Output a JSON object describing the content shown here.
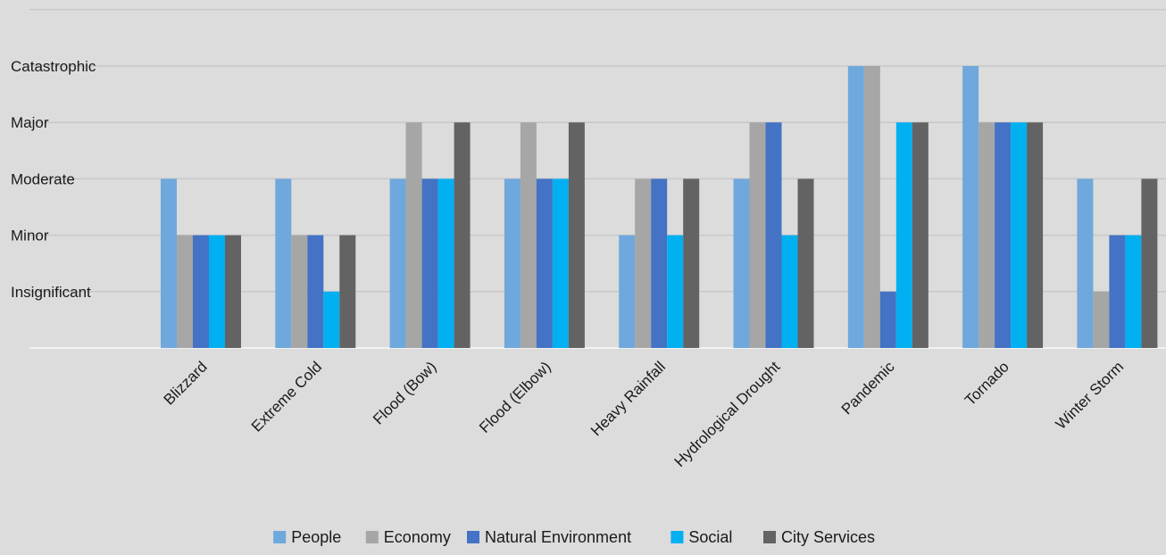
{
  "chart_data": {
    "type": "bar",
    "categories": [
      "Blizzard",
      "Extreme Cold",
      "Flood (Bow)",
      "Flood (Elbow)",
      "Heavy Rainfall",
      "Hydrological Drought",
      "Pandemic",
      "Tornado",
      "Winter Storm"
    ],
    "y_levels": [
      "Insignificant",
      "Minor",
      "Moderate",
      "Major",
      "Catastrophic"
    ],
    "ylim": [
      0,
      5
    ],
    "grid": true,
    "legend_position": "bottom",
    "series": [
      {
        "name": "People",
        "color": "#6fa8dc",
        "values": [
          3,
          3,
          3,
          3,
          2,
          3,
          5,
          5,
          3
        ]
      },
      {
        "name": "Economy",
        "color": "#a6a6a6",
        "values": [
          2,
          2,
          4,
          4,
          3,
          4,
          5,
          4,
          1
        ]
      },
      {
        "name": "Natural Environment",
        "color": "#4472c4",
        "values": [
          2,
          2,
          3,
          3,
          3,
          4,
          1,
          4,
          2
        ]
      },
      {
        "name": "Social",
        "color": "#00b0f0",
        "values": [
          2,
          1,
          3,
          3,
          2,
          2,
          4,
          4,
          2
        ]
      },
      {
        "name": "City Services",
        "color": "#636363",
        "values": [
          2,
          2,
          4,
          4,
          3,
          3,
          4,
          4,
          3
        ]
      }
    ]
  }
}
